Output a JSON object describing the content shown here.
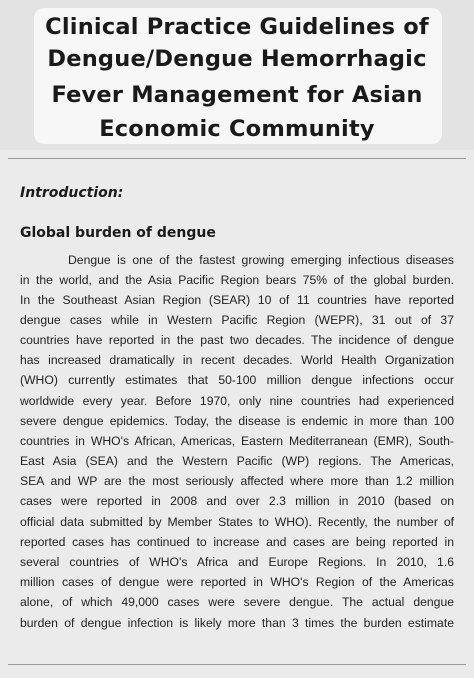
{
  "title": {
    "lines": [
      "Clinical Practice Guidelines of",
      "Dengue/Dengue Hemorrhagic",
      "Fever Management for Asian",
      "Economic Community"
    ]
  },
  "intro_heading": "Introduction:",
  "section_heading": "Global burden of dengue",
  "body_lines": [
    "Dengue is one of the fastest growing emerging infectious diseases",
    "in the world, and the Asia Pacific Region bears 75% of the global burden.",
    "In the Southeast Asian Region (SEAR) 10 of 11 countries have reported",
    "dengue cases while in Western Pacific Region (WEPR), 31 out of 37",
    "countries have reported in the past two decades. The incidence of dengue",
    "has increased dramatically in recent decades. World Health Organization",
    "(WHO) currently estimates that 50-100 million dengue infections occur",
    "worldwide every year. Before 1970, only nine countries had experienced",
    "severe dengue epidemics. Today, the disease is endemic in more than 100",
    "countries in WHO's African, Americas, Eastern Mediterranean (EMR), South-",
    "East Asia (SEA) and the Western Pacific (WP) regions. The Americas,",
    "SEA and WP are the most seriously affected where more than 1.2 million",
    "cases were reported in 2008 and over 2.3 million in 2010 (based on",
    "official data submitted by Member States to WHO). Recently, the number of",
    "reported cases has continued to increase and cases are being reported in",
    "several countries of WHO's Africa and Europe Regions. In 2010, 1.6",
    "million cases of dengue were reported in WHO's Region of the Americas",
    "alone, of which 49,000 cases were severe dengue. The actual dengue",
    "burden of dengue infection is likely more than 3 times the burden estimate"
  ]
}
